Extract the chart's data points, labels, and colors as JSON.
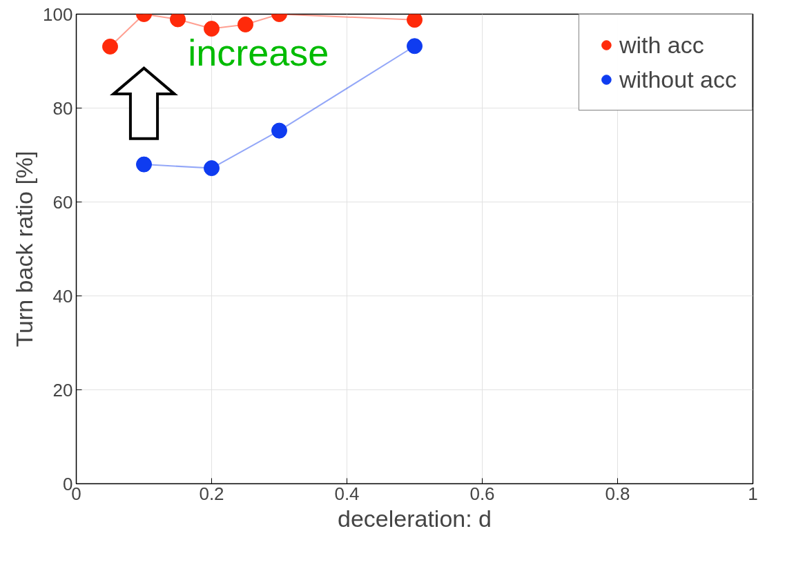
{
  "chart_data": {
    "type": "line",
    "xlabel": "deceleration: d",
    "ylabel": "Turn back ratio [%]",
    "xlim": [
      0,
      1
    ],
    "ylim": [
      0,
      100
    ],
    "xticks": [
      0,
      0.2,
      0.4,
      0.6,
      0.8,
      1
    ],
    "yticks": [
      0,
      20,
      40,
      60,
      80,
      100
    ],
    "grid": true,
    "marker": "circle",
    "legend": "top right",
    "annotations": [
      "increase"
    ],
    "series": [
      {
        "name": "with acc",
        "color": "#ff2a0a",
        "x": [
          0.05,
          0.1,
          0.15,
          0.2,
          0.25,
          0.3,
          0.5
        ],
        "values": [
          93.1,
          100,
          98.9,
          96.9,
          97.8,
          100,
          98.8
        ]
      },
      {
        "name": "without acc",
        "color": "#0f3cf0",
        "x": [
          0.1,
          0.2,
          0.3,
          0.5
        ],
        "values": [
          68.0,
          67.2,
          75.2,
          93.2
        ]
      }
    ]
  }
}
